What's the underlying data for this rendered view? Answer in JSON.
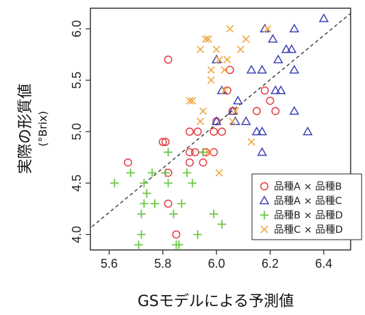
{
  "chart_data": {
    "type": "scatter",
    "xlabel": "GSモデルによる予測値",
    "ylabel": "実際の形質値",
    "ylabel_sub": "(°Brix)",
    "xlim": [
      5.53,
      6.5
    ],
    "ylim": [
      3.85,
      6.2
    ],
    "xticks": [
      5.6,
      5.8,
      6.0,
      6.2,
      6.4
    ],
    "xtick_labels": [
      "5.6",
      "5.8",
      "6.0",
      "6.2",
      "6.4"
    ],
    "yticks": [
      4.0,
      4.5,
      5.0,
      5.5,
      6.0
    ],
    "ytick_labels": [
      "4.0",
      "4.5",
      "5.0",
      "5.5",
      "6.0"
    ],
    "reference_line": {
      "style": "dashed",
      "from": [
        5.5,
        4.0
      ],
      "to": [
        6.5,
        6.15
      ]
    },
    "legend_position": "bottom-right",
    "grid": false,
    "series": [
      {
        "name": "品種A × 品種B",
        "marker": "circle",
        "color": "#e0393e",
        "points": [
          [
            5.82,
            5.7
          ],
          [
            5.81,
            4.9
          ],
          [
            5.8,
            4.9
          ],
          [
            5.82,
            4.6
          ],
          [
            5.82,
            4.3
          ],
          [
            5.85,
            4.0
          ],
          [
            5.67,
            4.7
          ],
          [
            5.9,
            5.0
          ],
          [
            5.93,
            5.0
          ],
          [
            5.9,
            4.8
          ],
          [
            5.92,
            4.8
          ],
          [
            5.96,
            4.8
          ],
          [
            5.99,
            4.8
          ],
          [
            5.9,
            4.7
          ],
          [
            5.95,
            4.7
          ],
          [
            5.99,
            5.0
          ],
          [
            6.0,
            5.1
          ],
          [
            6.05,
            5.6
          ],
          [
            6.04,
            5.4
          ],
          [
            6.02,
            5.0
          ],
          [
            6.15,
            5.2
          ],
          [
            6.18,
            5.4
          ],
          [
            6.2,
            5.3
          ],
          [
            6.22,
            5.2
          ],
          [
            6.06,
            5.2
          ]
        ]
      },
      {
        "name": "品種A × 品種C",
        "marker": "triangle",
        "color": "#3a3fb0",
        "points": [
          [
            6.4,
            6.1
          ],
          [
            6.29,
            6.0
          ],
          [
            6.18,
            6.0
          ],
          [
            6.21,
            5.9
          ],
          [
            6.26,
            5.8
          ],
          [
            6.28,
            5.8
          ],
          [
            6.23,
            5.7
          ],
          [
            6.0,
            5.7
          ],
          [
            6.13,
            5.6
          ],
          [
            6.17,
            5.6
          ],
          [
            6.29,
            5.6
          ],
          [
            6.02,
            5.4
          ],
          [
            6.22,
            5.4
          ],
          [
            6.24,
            5.4
          ],
          [
            6.08,
            5.3
          ],
          [
            6.06,
            5.2
          ],
          [
            6.29,
            5.2
          ],
          [
            6.11,
            5.1
          ],
          [
            6.0,
            5.1
          ],
          [
            6.07,
            5.1
          ],
          [
            6.15,
            5.0
          ],
          [
            6.17,
            5.0
          ],
          [
            6.34,
            5.0
          ],
          [
            6.17,
            4.8
          ],
          [
            6.15,
            4.5
          ]
        ]
      },
      {
        "name": "品種B × 品種D",
        "marker": "plus",
        "color": "#6cc644",
        "points": [
          [
            5.62,
            4.5
          ],
          [
            5.68,
            4.6
          ],
          [
            5.73,
            4.5
          ],
          [
            5.76,
            4.6
          ],
          [
            5.82,
            4.8
          ],
          [
            5.81,
            4.6
          ],
          [
            5.82,
            4.5
          ],
          [
            5.89,
            4.6
          ],
          [
            5.95,
            4.8
          ],
          [
            5.74,
            4.4
          ],
          [
            5.73,
            4.3
          ],
          [
            5.77,
            4.3
          ],
          [
            5.72,
            4.2
          ],
          [
            5.84,
            4.2
          ],
          [
            5.87,
            4.3
          ],
          [
            5.91,
            4.5
          ],
          [
            5.99,
            4.2
          ],
          [
            5.72,
            4.0
          ],
          [
            5.71,
            3.9
          ],
          [
            5.86,
            3.9
          ],
          [
            5.85,
            3.9
          ],
          [
            5.93,
            4.0
          ],
          [
            6.02,
            4.1
          ]
        ]
      },
      {
        "name": "品種C × 品種D",
        "marker": "x",
        "color": "#f0a540",
        "points": [
          [
            5.96,
            5.9
          ],
          [
            5.97,
            5.9
          ],
          [
            6.05,
            6.0
          ],
          [
            6.19,
            6.0
          ],
          [
            5.94,
            5.8
          ],
          [
            6.0,
            5.8
          ],
          [
            6.11,
            5.9
          ],
          [
            6.09,
            5.8
          ],
          [
            6.01,
            5.7
          ],
          [
            6.04,
            5.7
          ],
          [
            5.98,
            5.6
          ],
          [
            6.03,
            5.6
          ],
          [
            5.98,
            5.5
          ],
          [
            6.03,
            5.4
          ],
          [
            5.9,
            5.3
          ],
          [
            5.91,
            5.3
          ],
          [
            5.95,
            5.2
          ],
          [
            5.94,
            5.1
          ],
          [
            6.07,
            5.2
          ],
          [
            6.13,
            4.9
          ],
          [
            5.97,
            4.8
          ],
          [
            6.01,
            4.6
          ],
          [
            6.06,
            5.1
          ]
        ]
      }
    ]
  }
}
